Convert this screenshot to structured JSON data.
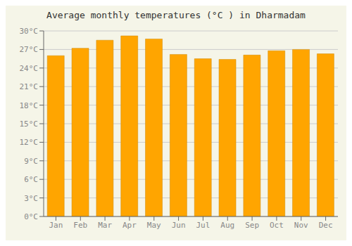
{
  "chart_data": {
    "type": "bar",
    "title": "Average monthly temperatures (°C ) in Dharmadam",
    "categories": [
      "Jan",
      "Feb",
      "Mar",
      "Apr",
      "May",
      "Jun",
      "Jul",
      "Aug",
      "Sep",
      "Oct",
      "Nov",
      "Dec"
    ],
    "values": [
      26.0,
      27.2,
      28.5,
      29.2,
      28.7,
      26.2,
      25.5,
      25.4,
      26.1,
      26.8,
      27.0,
      26.3
    ],
    "color": "#FFA500",
    "ylim": [
      0,
      30
    ],
    "yticks": [
      {
        "value": 0,
        "label": "0°C"
      },
      {
        "value": 3,
        "label": "3°C"
      },
      {
        "value": 6,
        "label": "6°C"
      },
      {
        "value": 9,
        "label": "9°C"
      },
      {
        "value": 12,
        "label": "12°C"
      },
      {
        "value": 15,
        "label": "15°C"
      },
      {
        "value": 18,
        "label": "18°C"
      },
      {
        "value": 21,
        "label": "21°C"
      },
      {
        "value": 24,
        "label": "24°C"
      },
      {
        "value": 27,
        "label": "27°C"
      },
      {
        "value": 30,
        "label": "30°C"
      }
    ],
    "grid": true
  }
}
